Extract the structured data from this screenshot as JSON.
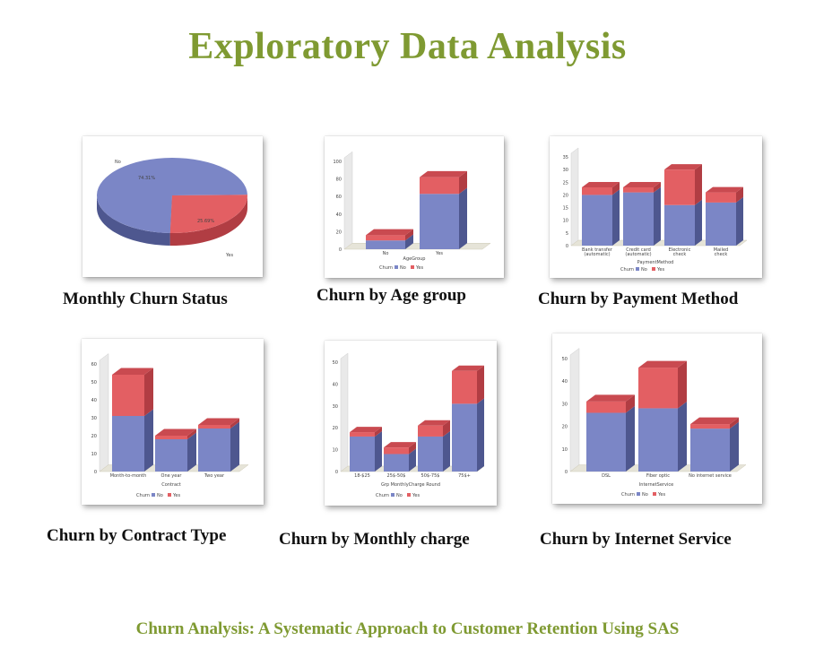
{
  "page": {
    "title": "Exploratory Data Analysis",
    "footer": "Churn Analysis: A Systematic Approach to Customer Retention Using SAS"
  },
  "colors": {
    "no": "#7b86c6",
    "yes": "#e35f63",
    "no_side": "#4e578f",
    "yes_side": "#b13d43",
    "title": "#7f9a32"
  },
  "charts": [
    {
      "caption": "Monthly Churn Status",
      "chart_data": {
        "type": "pie",
        "slices": [
          {
            "label": "No",
            "value": 74.31,
            "value_label": "74.31%"
          },
          {
            "label": "Yes",
            "value": 25.69,
            "value_label": "25.69%"
          }
        ]
      }
    },
    {
      "caption": "Churn by Age group",
      "chart_data": {
        "type": "bar",
        "stacked": true,
        "xlabel": "AgeGroup",
        "categories": [
          "No",
          "Yes"
        ],
        "series": [
          {
            "name": "No",
            "values": [
              10,
              63
            ]
          },
          {
            "name": "Yes",
            "values": [
              6,
              19
            ]
          }
        ],
        "ylim": [
          0,
          100
        ],
        "yticks": [
          0,
          20,
          40,
          60,
          80,
          100
        ],
        "legend_title": "Churn",
        "legend": [
          "No",
          "Yes"
        ]
      }
    },
    {
      "caption": "Churn by Payment Method",
      "chart_data": {
        "type": "bar",
        "stacked": true,
        "xlabel": "PaymentMethod",
        "categories": [
          "Bank transfer (automatic)",
          "Credit card (automatic)",
          "Electronic check",
          "Mailed check"
        ],
        "category_lines": [
          [
            "Bank transfer",
            "(automatic)"
          ],
          [
            "Credit card",
            "(automatic)"
          ],
          [
            "Electronic",
            "check"
          ],
          [
            "Mailed",
            "check"
          ]
        ],
        "series": [
          {
            "name": "No",
            "values": [
              20,
              21,
              16,
              17
            ]
          },
          {
            "name": "Yes",
            "values": [
              3,
              2,
              14,
              4
            ]
          }
        ],
        "ylim": [
          0,
          35
        ],
        "yticks": [
          0,
          5,
          10,
          15,
          20,
          25,
          30,
          35
        ],
        "legend_title": "Churn",
        "legend": [
          "No",
          "Yes"
        ]
      }
    },
    {
      "caption": "Churn by Contract Type",
      "chart_data": {
        "type": "bar",
        "stacked": true,
        "xlabel": "Contract",
        "categories": [
          "Month-to-month",
          "One year",
          "Two year"
        ],
        "series": [
          {
            "name": "No",
            "values": [
              31,
              18,
              24
            ]
          },
          {
            "name": "Yes",
            "values": [
              23,
              2,
              2
            ]
          }
        ],
        "ylim": [
          0,
          60
        ],
        "yticks": [
          0,
          10,
          20,
          30,
          40,
          50,
          60
        ],
        "legend_title": "Churn",
        "legend": [
          "No",
          "Yes"
        ]
      }
    },
    {
      "caption": "Churn by Monthly charge",
      "chart_data": {
        "type": "bar",
        "stacked": true,
        "xlabel": "Grp MonthlyCharge Round",
        "categories": [
          "18-$25",
          "25$-50$",
          "50$-75$",
          "75$+"
        ],
        "series": [
          {
            "name": "No",
            "values": [
              16,
              8,
              16,
              31
            ]
          },
          {
            "name": "Yes",
            "values": [
              2,
              3,
              5,
              15
            ]
          }
        ],
        "ylim": [
          0,
          50
        ],
        "yticks": [
          0,
          10,
          20,
          30,
          40,
          50
        ],
        "legend_title": "Churn",
        "legend": [
          "No",
          "Yes"
        ]
      }
    },
    {
      "caption": "Churn by Internet Service",
      "chart_data": {
        "type": "bar",
        "stacked": true,
        "xlabel": "InternetService",
        "categories": [
          "DSL",
          "Fiber optic",
          "No internet service"
        ],
        "series": [
          {
            "name": "No",
            "values": [
              26,
              28,
              19
            ]
          },
          {
            "name": "Yes",
            "values": [
              5,
              18,
              2
            ]
          }
        ],
        "ylim": [
          0,
          50
        ],
        "yticks": [
          0,
          10,
          20,
          30,
          40,
          50
        ],
        "legend_title": "Churn",
        "legend": [
          "No",
          "Yes"
        ]
      }
    }
  ]
}
